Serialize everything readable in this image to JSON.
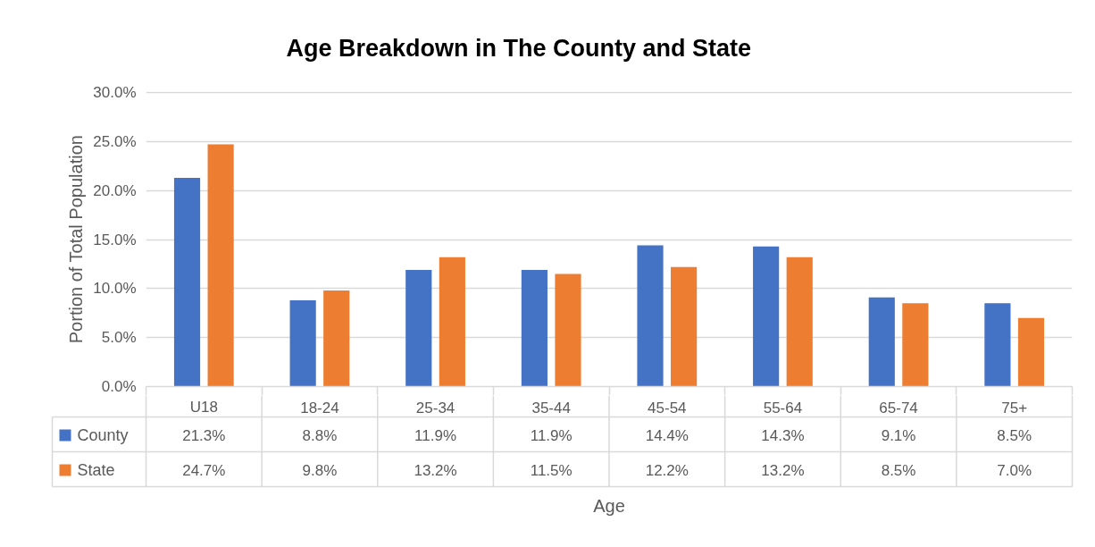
{
  "chart_data": {
    "type": "bar",
    "title": "Age Breakdown in The County and State",
    "xlabel": "Age",
    "ylabel": "Portion of Total Population",
    "categories": [
      "U18",
      "18-24",
      "25-34",
      "35-44",
      "45-54",
      "55-64",
      "65-74",
      "75+"
    ],
    "series": [
      {
        "name": "County",
        "color": "#4472c4",
        "values": [
          21.3,
          8.8,
          11.9,
          11.9,
          14.4,
          14.3,
          9.1,
          8.5
        ],
        "value_labels": [
          "21.3%",
          "8.8%",
          "11.9%",
          "11.9%",
          "14.4%",
          "14.3%",
          "9.1%",
          "8.5%"
        ]
      },
      {
        "name": "State",
        "color": "#ed7d31",
        "values": [
          24.7,
          9.8,
          13.2,
          11.5,
          12.2,
          13.2,
          8.5,
          7.0
        ],
        "value_labels": [
          "24.7%",
          "9.8%",
          "13.2%",
          "11.5%",
          "12.2%",
          "13.2%",
          "8.5%",
          "7.0%"
        ]
      }
    ],
    "ylim": [
      0,
      30
    ],
    "yticks": [
      {
        "value": 0,
        "label": "0.0%"
      },
      {
        "value": 5,
        "label": "5.0%"
      },
      {
        "value": 10,
        "label": "10.0%"
      },
      {
        "value": 15,
        "label": "15.0%"
      },
      {
        "value": 20,
        "label": "20.0%"
      },
      {
        "value": 25,
        "label": "25.0%"
      },
      {
        "value": 30,
        "label": "30.0%"
      }
    ],
    "grid": "y",
    "legend": "bottom"
  }
}
